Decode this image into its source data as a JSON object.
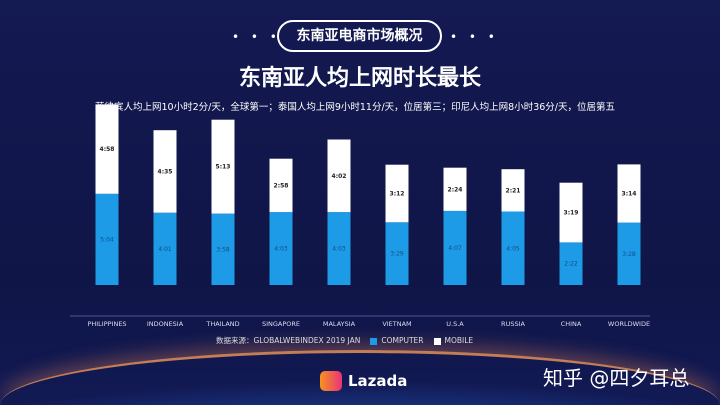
{
  "header": {
    "section": "东南亚电商市场概况",
    "dots": "• • •",
    "title": "东南亚人均上网时长最长",
    "subtitle": "菲律宾人均上网10小时2分/天，全球第一；泰国人均上网9小时11分/天，位居第三；印尼人均上网8小时36分/天，位居第五"
  },
  "source": "数据来源：GLOBALWEBINDEX 2019 JAN",
  "brand": "Lazada",
  "watermark": "知乎 @四夕耳总",
  "colors": {
    "computer": "#1e9be6",
    "mobile": "#ffffff"
  },
  "chart_data": {
    "type": "bar",
    "stacked": true,
    "title": "东南亚人均上网时长最长",
    "categories": [
      "PHILIPPINES",
      "INDONESIA",
      "THAILAND",
      "SINGAPORE",
      "MALAYSIA",
      "VIETNAM",
      "U.S.A",
      "RUSSIA",
      "CHINA",
      "WORLDWIDE"
    ],
    "series": [
      {
        "name": "COMPUTER",
        "values": [
          "5:04",
          "4:01",
          "3:58",
          "4:03",
          "4:03",
          "3:29",
          "4:07",
          "4:05",
          "2:22",
          "3:28"
        ]
      },
      {
        "name": "MOBILE",
        "values": [
          "4:58",
          "4:35",
          "5:13",
          "2:58",
          "4:02",
          "3:12",
          "2:24",
          "2:21",
          "3:19",
          "3:14"
        ]
      }
    ],
    "unit": "hours:minutes per day",
    "legend": "bottom-left"
  }
}
